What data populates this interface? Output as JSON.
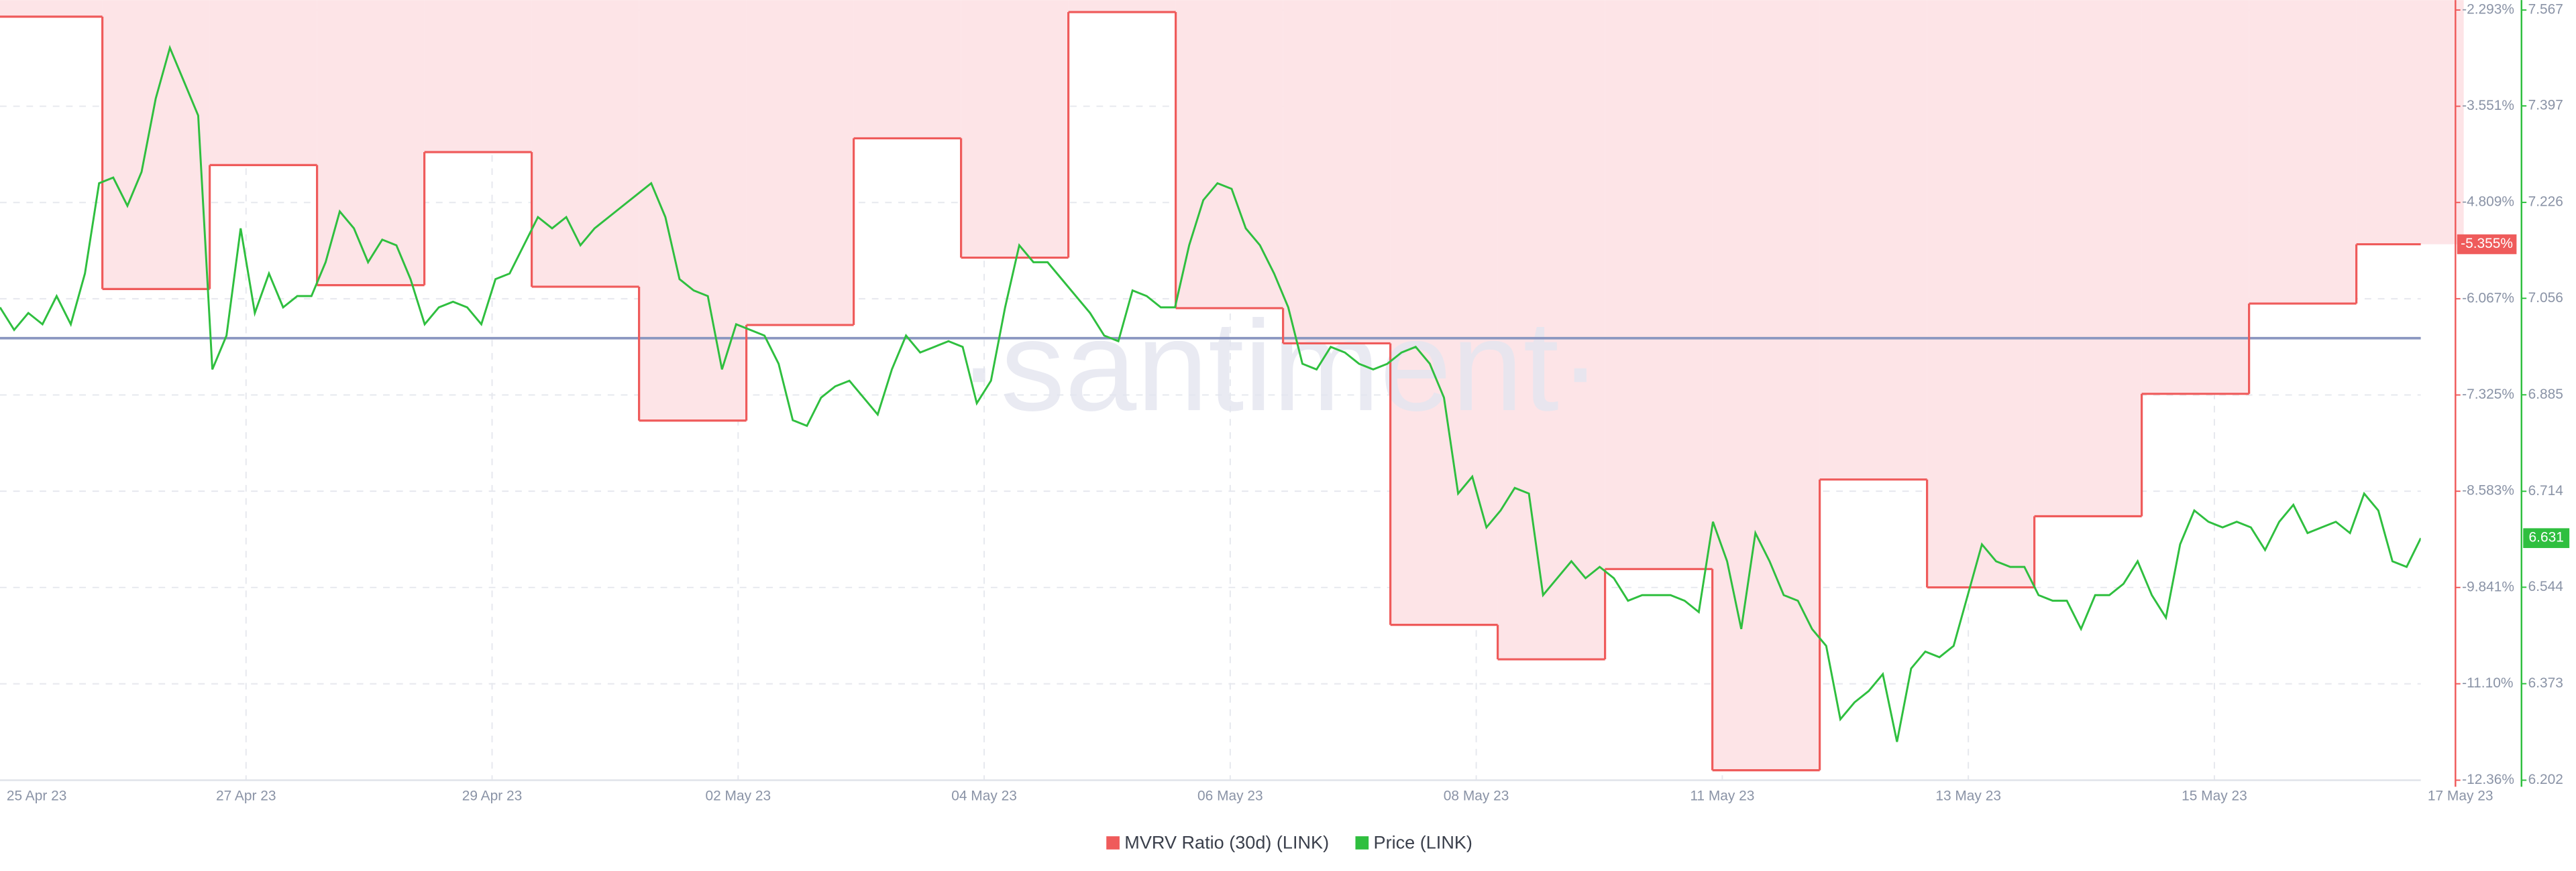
{
  "chart_data": {
    "type": "line",
    "watermark": "·santiment·",
    "xticks": [
      "25 Apr 23",
      "27 Apr 23",
      "29 Apr 23",
      "02 May 23",
      "04 May 23",
      "06 May 23",
      "08 May 23",
      "11 May 23",
      "13 May 23",
      "15 May 23",
      "17 May 23"
    ],
    "ylim": [
      -12.36,
      -2.293
    ],
    "yticks": [
      {
        "value": -2.293,
        "label": "-2.293%"
      },
      {
        "value": -3.551,
        "label": "-3.551%"
      },
      {
        "value": -4.809,
        "label": "-4.809%"
      },
      {
        "value": -6.067,
        "label": "-6.067%"
      },
      {
        "value": -7.325,
        "label": "-7.325%"
      },
      {
        "value": -8.583,
        "label": "-8.583%"
      },
      {
        "value": -9.841,
        "label": "-9.841%"
      },
      {
        "value": -11.1,
        "label": "-11.10%"
      },
      {
        "value": -12.36,
        "label": "-12.36%"
      }
    ],
    "y2lim": [
      6.202,
      7.567
    ],
    "y2ticks": [
      7.567,
      7.397,
      7.226,
      7.056,
      6.885,
      6.714,
      6.544,
      6.373,
      6.202
    ],
    "grid": true,
    "series": [
      {
        "name": "MVRV Ratio (30d) (LINK)",
        "color": "#ef5b5b",
        "fill": "#fde4e7",
        "step": true,
        "last_label": "-5.355%",
        "values": [
          -2.38,
          -5.94,
          -4.32,
          -5.89,
          -4.15,
          -5.91,
          -7.66,
          -6.41,
          -3.97,
          -5.53,
          -2.32,
          -6.19,
          -6.65,
          -10.33,
          -10.78,
          -9.6,
          -12.23,
          -8.43,
          -9.84,
          -8.91,
          -7.31,
          -6.13,
          -5.355
        ]
      },
      {
        "name": "Price (LINK)",
        "color": "#2fbf3f",
        "axis": "y2",
        "last_label": "6.631",
        "values": [
          7.04,
          7.0,
          7.03,
          7.01,
          7.06,
          7.01,
          7.1,
          7.26,
          7.27,
          7.22,
          7.28,
          7.41,
          7.5,
          7.44,
          7.38,
          6.93,
          6.99,
          7.18,
          7.03,
          7.1,
          7.04,
          7.06,
          7.06,
          7.12,
          7.21,
          7.18,
          7.12,
          7.16,
          7.15,
          7.09,
          7.01,
          7.04,
          7.05,
          7.04,
          7.01,
          7.09,
          7.1,
          7.15,
          7.2,
          7.18,
          7.2,
          7.15,
          7.18,
          7.2,
          7.22,
          7.24,
          7.26,
          7.2,
          7.09,
          7.07,
          7.06,
          6.93,
          7.01,
          7.0,
          6.99,
          6.94,
          6.84,
          6.83,
          6.88,
          6.9,
          6.91,
          6.88,
          6.85,
          6.93,
          6.99,
          6.96,
          6.97,
          6.98,
          6.97,
          6.87,
          6.91,
          7.04,
          7.15,
          7.12,
          7.12,
          7.09,
          7.06,
          7.03,
          6.99,
          6.98,
          7.07,
          7.06,
          7.04,
          7.04,
          7.15,
          7.23,
          7.26,
          7.25,
          7.18,
          7.15,
          7.1,
          7.04,
          6.94,
          6.93,
          6.97,
          6.96,
          6.94,
          6.93,
          6.94,
          6.96,
          6.97,
          6.94,
          6.88,
          6.71,
          6.74,
          6.65,
          6.68,
          6.72,
          6.71,
          6.53,
          6.56,
          6.59,
          6.56,
          6.58,
          6.56,
          6.52,
          6.53,
          6.53,
          6.53,
          6.52,
          6.5,
          6.66,
          6.59,
          6.47,
          6.64,
          6.59,
          6.53,
          6.52,
          6.47,
          6.44,
          6.31,
          6.34,
          6.36,
          6.39,
          6.27,
          6.4,
          6.43,
          6.42,
          6.44,
          6.53,
          6.62,
          6.59,
          6.58,
          6.58,
          6.53,
          6.52,
          6.52,
          6.47,
          6.53,
          6.53,
          6.55,
          6.59,
          6.53,
          6.49,
          6.62,
          6.68,
          6.66,
          6.65,
          6.66,
          6.65,
          6.61,
          6.66,
          6.69,
          6.64,
          6.65,
          6.66,
          6.64,
          6.71,
          6.68,
          6.59,
          6.58,
          6.631
        ]
      }
    ]
  }
}
